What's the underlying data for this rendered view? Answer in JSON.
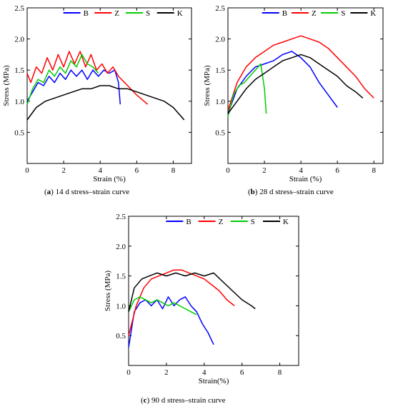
{
  "captions": [
    {
      "letter": "a",
      "text": " 14 d stress–strain curve"
    },
    {
      "letter": "b",
      "text": " 28 d stress–strain curve"
    },
    {
      "letter": "c",
      "text": " 90 d stress–strain curve"
    }
  ],
  "chart_data": [
    {
      "type": "line",
      "xlabel": "Strain (%)",
      "ylabel": "Stress (MPa)",
      "xlim": [
        0,
        9
      ],
      "ylim": [
        0,
        2.5
      ],
      "xticks": [
        "0",
        "2",
        "4",
        "6",
        "8"
      ],
      "yticks": [
        "0.5",
        "1.0",
        "1.5",
        "2.0",
        "2.5"
      ],
      "grid": false,
      "legend_position": "top",
      "series": [
        {
          "name": "B",
          "color": "#0000ff",
          "x": [
            0,
            0.3,
            0.6,
            0.9,
            1.2,
            1.5,
            1.8,
            2.1,
            2.4,
            2.7,
            3.0,
            3.3,
            3.6,
            3.9,
            4.2,
            4.5,
            4.8,
            5.0,
            5.1
          ],
          "y": [
            1.0,
            1.15,
            1.3,
            1.25,
            1.4,
            1.3,
            1.45,
            1.35,
            1.5,
            1.4,
            1.5,
            1.35,
            1.5,
            1.4,
            1.5,
            1.45,
            1.5,
            1.3,
            0.95
          ]
        },
        {
          "name": "Z",
          "color": "#ff0000",
          "x": [
            0,
            0.2,
            0.5,
            0.8,
            1.1,
            1.4,
            1.7,
            2.0,
            2.3,
            2.6,
            2.9,
            3.2,
            3.5,
            3.8,
            4.1,
            4.4,
            4.7,
            5.0,
            5.5,
            6.0,
            6.6
          ],
          "y": [
            1.45,
            1.3,
            1.55,
            1.45,
            1.7,
            1.5,
            1.75,
            1.55,
            1.8,
            1.6,
            1.8,
            1.55,
            1.75,
            1.5,
            1.6,
            1.45,
            1.55,
            1.4,
            1.25,
            1.1,
            0.95
          ]
        },
        {
          "name": "S",
          "color": "#00cc00",
          "x": [
            0,
            0.3,
            0.6,
            0.9,
            1.2,
            1.5,
            1.8,
            2.1,
            2.4,
            2.7,
            3.0,
            3.3,
            3.6,
            3.9
          ],
          "y": [
            0.95,
            1.2,
            1.35,
            1.3,
            1.5,
            1.4,
            1.55,
            1.45,
            1.65,
            1.55,
            1.75,
            1.6,
            1.55,
            1.45
          ]
        },
        {
          "name": "K",
          "color": "#000000",
          "x": [
            0,
            0.5,
            1.0,
            1.5,
            2.0,
            2.5,
            3.0,
            3.5,
            4.0,
            4.5,
            5.0,
            5.5,
            6.0,
            6.5,
            7.0,
            7.5,
            8.0,
            8.6
          ],
          "y": [
            0.7,
            0.9,
            1.0,
            1.05,
            1.1,
            1.15,
            1.2,
            1.2,
            1.25,
            1.25,
            1.2,
            1.2,
            1.15,
            1.1,
            1.05,
            1.0,
            0.9,
            0.7
          ]
        }
      ]
    },
    {
      "type": "line",
      "xlabel": "Strain (%)",
      "ylabel": "Stress (MPa)",
      "xlim": [
        0,
        8.5
      ],
      "ylim": [
        0,
        2.5
      ],
      "xticks": [
        "0",
        "2",
        "4",
        "6",
        "8"
      ],
      "yticks": [
        "0.5",
        "1.0",
        "1.5",
        "2.0",
        "2.5"
      ],
      "grid": false,
      "legend_position": "top",
      "series": [
        {
          "name": "B",
          "color": "#0000ff",
          "x": [
            0,
            0.5,
            1.0,
            1.5,
            2.0,
            2.5,
            3.0,
            3.5,
            4.0,
            4.5,
            5.0,
            5.5,
            6.0
          ],
          "y": [
            0.8,
            1.2,
            1.4,
            1.55,
            1.6,
            1.65,
            1.75,
            1.8,
            1.7,
            1.55,
            1.3,
            1.1,
            0.9
          ]
        },
        {
          "name": "Z",
          "color": "#ff0000",
          "x": [
            0,
            0.5,
            1.0,
            1.5,
            2.0,
            2.5,
            3.0,
            3.5,
            4.0,
            4.5,
            5.0,
            5.5,
            6.0,
            6.5,
            7.0,
            7.5,
            8.0
          ],
          "y": [
            0.85,
            1.3,
            1.55,
            1.7,
            1.8,
            1.9,
            1.95,
            2.0,
            2.05,
            2.0,
            1.95,
            1.85,
            1.7,
            1.55,
            1.4,
            1.2,
            1.05
          ]
        },
        {
          "name": "S",
          "color": "#00cc00",
          "x": [
            0,
            0.3,
            0.6,
            0.9,
            1.2,
            1.5,
            1.8,
            2.0,
            2.1
          ],
          "y": [
            0.75,
            1.1,
            1.25,
            1.3,
            1.4,
            1.5,
            1.6,
            1.2,
            0.8
          ]
        },
        {
          "name": "K",
          "color": "#000000",
          "x": [
            0,
            0.5,
            1.0,
            1.5,
            2.0,
            2.5,
            3.0,
            3.5,
            4.0,
            4.5,
            5.0,
            5.5,
            6.0,
            6.5,
            7.0,
            7.4
          ],
          "y": [
            0.8,
            1.0,
            1.2,
            1.35,
            1.45,
            1.55,
            1.65,
            1.7,
            1.75,
            1.7,
            1.6,
            1.5,
            1.4,
            1.25,
            1.15,
            1.05
          ]
        }
      ]
    },
    {
      "type": "line",
      "xlabel": "Strain(%)",
      "ylabel": "Stress (MPa)",
      "xlim": [
        0,
        9
      ],
      "ylim": [
        0,
        2.5
      ],
      "xticks": [
        "0",
        "2",
        "4",
        "6",
        "8"
      ],
      "yticks": [
        "0.5",
        "1.0",
        "1.5",
        "2.0",
        "2.5"
      ],
      "grid": false,
      "legend_position": "top",
      "series": [
        {
          "name": "B",
          "color": "#0000ff",
          "x": [
            0,
            0.3,
            0.6,
            0.9,
            1.2,
            1.5,
            1.8,
            2.1,
            2.4,
            2.7,
            3.0,
            3.3,
            3.6,
            3.9,
            4.2,
            4.5
          ],
          "y": [
            0.3,
            0.9,
            1.05,
            1.1,
            1.0,
            1.1,
            0.95,
            1.15,
            1.0,
            1.1,
            1.15,
            1.0,
            0.9,
            0.7,
            0.55,
            0.35
          ]
        },
        {
          "name": "Z",
          "color": "#ff0000",
          "x": [
            0,
            0.4,
            0.8,
            1.2,
            1.6,
            2.0,
            2.4,
            2.8,
            3.2,
            3.6,
            4.0,
            4.4,
            4.8,
            5.2,
            5.6
          ],
          "y": [
            0.5,
            1.0,
            1.3,
            1.45,
            1.5,
            1.55,
            1.6,
            1.6,
            1.55,
            1.5,
            1.45,
            1.35,
            1.25,
            1.1,
            1.0
          ]
        },
        {
          "name": "S",
          "color": "#00cc00",
          "x": [
            0,
            0.3,
            0.6,
            0.9,
            1.2,
            1.5,
            1.8,
            2.1,
            2.4,
            2.7,
            3.0,
            3.3,
            3.6
          ],
          "y": [
            0.9,
            1.1,
            1.15,
            1.1,
            1.05,
            1.1,
            1.05,
            1.0,
            1.05,
            1.0,
            0.95,
            0.9,
            0.85
          ]
        },
        {
          "name": "K",
          "color": "#000000",
          "x": [
            0,
            0.3,
            0.7,
            1.1,
            1.5,
            2.0,
            2.5,
            3.0,
            3.5,
            4.0,
            4.5,
            5.0,
            5.5,
            6.0,
            6.5,
            6.7
          ],
          "y": [
            0.9,
            1.3,
            1.45,
            1.5,
            1.55,
            1.5,
            1.55,
            1.5,
            1.55,
            1.5,
            1.55,
            1.4,
            1.25,
            1.1,
            1.0,
            0.95
          ]
        }
      ]
    }
  ]
}
